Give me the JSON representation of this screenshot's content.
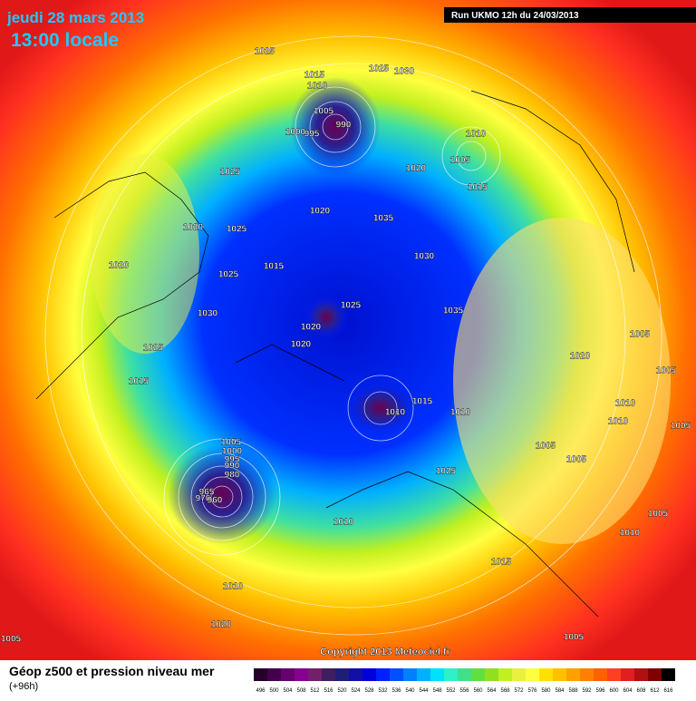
{
  "header": {
    "date": "jeudi 28 mars 2013",
    "time": "13:00 locale",
    "run": "Run UKMO 12h du 24/03/2013"
  },
  "map": {
    "pressure_labels": [
      1025,
      1015,
      1010,
      1025,
      1030,
      990,
      1005,
      1000,
      995,
      1010,
      1005,
      1020,
      1015,
      1025,
      1020,
      1035,
      1020,
      1025,
      1030,
      1015,
      1025,
      1020,
      1030,
      1025,
      1035,
      1020,
      1020,
      1025,
      1005,
      1020,
      1015,
      1015,
      1010,
      1010,
      1005,
      1010,
      1010,
      1005,
      1005,
      1005,
      1025,
      1005,
      1000,
      995,
      990,
      980,
      965,
      970,
      960,
      1005,
      1010,
      1010,
      1015,
      1010,
      1020,
      1005,
      1005
    ]
  },
  "footer": {
    "copyright": "Copyright 2013 Meteociel.fr",
    "title": "Géop z500 et pression niveau mer",
    "lead": "(+96h)"
  },
  "legend": {
    "labels": [
      496,
      500,
      504,
      508,
      512,
      516,
      520,
      524,
      528,
      532,
      536,
      540,
      544,
      548,
      552,
      556,
      560,
      564,
      568,
      572,
      576,
      580,
      584,
      588,
      592,
      596,
      600,
      604,
      608,
      612,
      616
    ],
    "colors": [
      "#24002a",
      "#44004c",
      "#66006e",
      "#880090",
      "#72206a",
      "#3e1e5e",
      "#1e1e78",
      "#1010a8",
      "#0000d8",
      "#0020ff",
      "#0050ff",
      "#0080ff",
      "#00b0ff",
      "#00e0ff",
      "#30f0c8",
      "#40e088",
      "#60e040",
      "#90e020",
      "#c0f020",
      "#e8f040",
      "#ffff40",
      "#ffe000",
      "#ffc000",
      "#ffa000",
      "#ff8000",
      "#ff6000",
      "#ff4020",
      "#e02020",
      "#b01010",
      "#800000",
      "#000000"
    ]
  }
}
